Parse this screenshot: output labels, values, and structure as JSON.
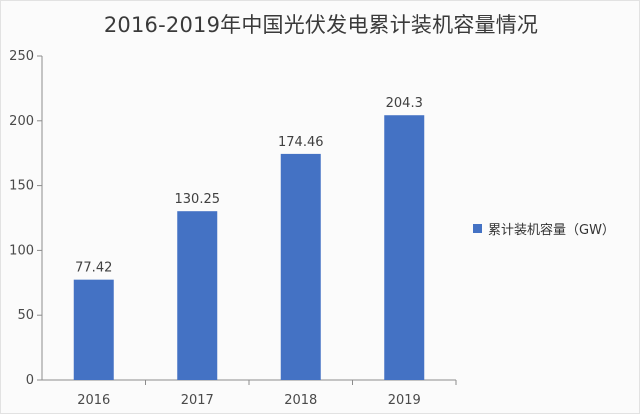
{
  "chart_data": {
    "type": "bar",
    "title": "2016-2019年中国光伏发电累计装机容量情况",
    "categories": [
      "2016",
      "2017",
      "2018",
      "2019"
    ],
    "series": [
      {
        "name": "累计装机容量（GW）",
        "values": [
          77.42,
          130.25,
          174.46,
          204.3
        ],
        "data_labels": [
          "77.42",
          "130.25",
          "174.46",
          "204.3"
        ]
      }
    ],
    "xlabel": "",
    "ylabel": "",
    "ylim": [
      0,
      250
    ],
    "yticks": [
      "0",
      "50",
      "100",
      "150",
      "200",
      "250"
    ],
    "grid": false,
    "legend_position": "right",
    "bar_color": "#4472C4"
  }
}
